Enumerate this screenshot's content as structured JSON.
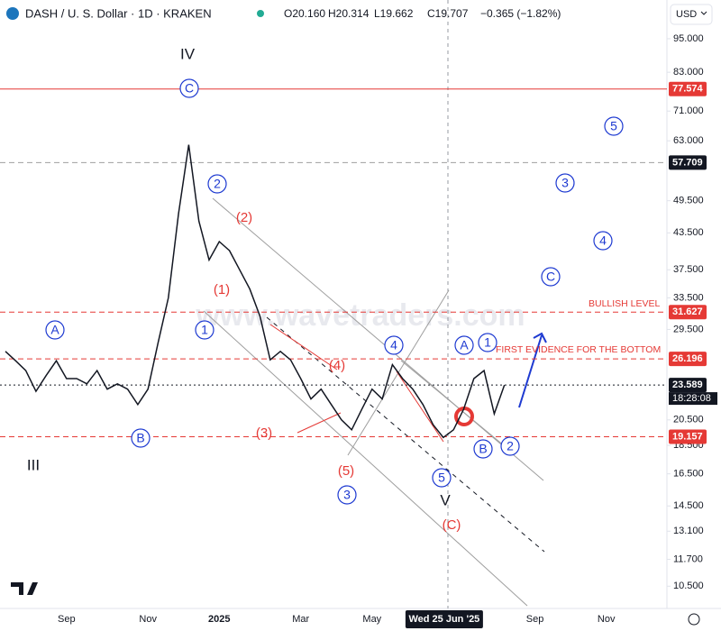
{
  "chart_data": {
    "type": "line",
    "header": {
      "symbol": "DASH / U. S. Dollar · 1D · KRAKEN",
      "ohlc": [
        "O20.160",
        "H20.314",
        "L19.662",
        "C19.707",
        "−0.365 (−1.82%)"
      ],
      "currency": "USD"
    },
    "watermark": "www.wavetraders.com",
    "categories": [
      null,
      null,
      null,
      null,
      null,
      null,
      "Sep",
      null,
      null,
      null,
      null,
      null,
      null,
      null,
      "Nov",
      null,
      null,
      null,
      null,
      null,
      null,
      "2025",
      null,
      null,
      null,
      null,
      null,
      null,
      null,
      "Mar",
      null,
      null,
      null,
      null,
      null,
      null,
      "May",
      null,
      null,
      null,
      null,
      null,
      null,
      "Wed 25 Jun '25",
      null,
      null,
      null,
      null,
      null,
      null,
      null,
      null,
      "Sep",
      null,
      null,
      null,
      null,
      null,
      null,
      "Nov",
      null,
      null,
      null,
      null
    ],
    "values": [
      27,
      26,
      25,
      23,
      24.5,
      26,
      24.2,
      24.2,
      23.7,
      25,
      23.2,
      23.7,
      23.2,
      21.8,
      23.2,
      28,
      33.5,
      47,
      62,
      45.6,
      39,
      42,
      40.5,
      37.5,
      34.7,
      31.1,
      26.1,
      27,
      26.1,
      24.2,
      22.3,
      23.2,
      21.8,
      20.5,
      19.7,
      21.4,
      23.2,
      22.3,
      25.6,
      24.2,
      23.2,
      21.8,
      20.1,
      19.1,
      19.7,
      21.4,
      24.2,
      25,
      21,
      23.589,
      null,
      null,
      null,
      null,
      null,
      null,
      null,
      null,
      null,
      null,
      null,
      null,
      null,
      null
    ],
    "color": "#131722",
    "log_scale": true,
    "ylim": [
      9.6,
      111
    ],
    "yticks": [
      {
        "value": 95,
        "label": "95.000"
      },
      {
        "value": 83,
        "label": "83.000"
      },
      {
        "value": 71,
        "label": "71.000"
      },
      {
        "value": 63,
        "label": "63.000"
      },
      {
        "value": 49.5,
        "label": "49.500"
      },
      {
        "value": 43.5,
        "label": "43.500"
      },
      {
        "value": 37.5,
        "label": "37.500"
      },
      {
        "value": 33.5,
        "label": "33.500"
      },
      {
        "value": 29.5,
        "label": "29.500"
      },
      {
        "value": 20.5,
        "label": "20.500"
      },
      {
        "value": 18.5,
        "label": "18.500"
      },
      {
        "value": 16.5,
        "label": "16.500"
      },
      {
        "value": 14.5,
        "label": "14.500"
      },
      {
        "value": 13.1,
        "label": "13.100"
      },
      {
        "value": 11.7,
        "label": "11.700"
      },
      {
        "value": 10.5,
        "label": "10.500"
      }
    ],
    "levels": [
      {
        "value": 77.574,
        "color": "#e53935",
        "dash": "solid"
      },
      {
        "value": 57.709,
        "color": "#9e9e9e",
        "dash": "dashed",
        "label_color": "#131722"
      },
      {
        "value": 31.627,
        "color": "#e53935",
        "dash": "dashed"
      },
      {
        "value": 26.196,
        "color": "#e53935",
        "dash": "dashed"
      },
      {
        "value": 23.589,
        "color": "#131722",
        "dash": "dotted",
        "label_color": "#131722"
      },
      {
        "value": 19.157,
        "color": "#e53935",
        "dash": "dashed"
      }
    ],
    "countdown": "18:28:08",
    "annotations": [
      "BULLISH LEVEL",
      "FIRST EVIDENCE FOR THE BOTTOM"
    ],
    "wave_labels_circled": [
      "A",
      "B",
      "C",
      "1",
      "2",
      "3",
      "4",
      "5",
      "A",
      "1",
      "B",
      "2",
      "C",
      "4",
      "3",
      "5"
    ],
    "wave_labels_red": [
      "(1)",
      "(2)",
      "(3)",
      "(4)",
      "(5)",
      "(C)"
    ],
    "wave_labels_roman": [
      "IV",
      "III",
      "V"
    ]
  }
}
